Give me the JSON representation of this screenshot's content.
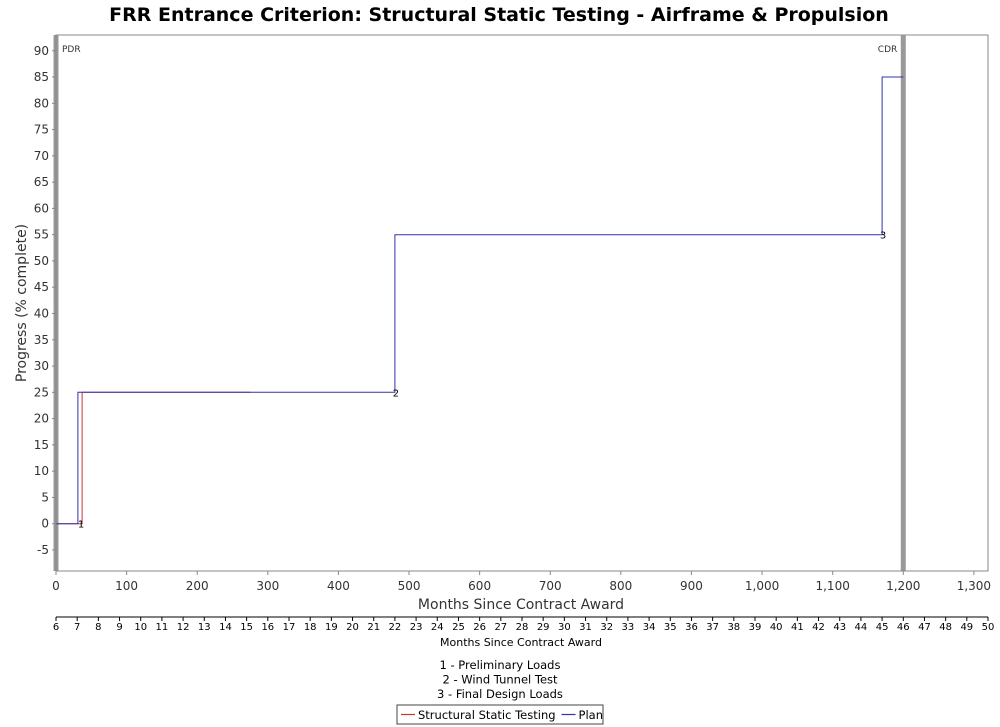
{
  "chart_data": {
    "type": "line",
    "title": "FRR Entrance Criterion: Structural Static Testing - Airframe & Propulsion",
    "xlabel": "Months Since Contract Award",
    "ylabel": "Progress (% complete)",
    "xlim": [
      0,
      1320
    ],
    "ylim": [
      -9,
      93
    ],
    "x_ticks": [
      0,
      100,
      200,
      300,
      400,
      500,
      600,
      700,
      800,
      900,
      1000,
      1100,
      1200,
      1300
    ],
    "x_tick_labels": [
      "0",
      "100",
      "200",
      "300",
      "400",
      "500",
      "600",
      "700",
      "800",
      "900",
      "1,000",
      "1,100",
      "1,200",
      "1,300"
    ],
    "y_ticks": [
      -5,
      0,
      5,
      10,
      15,
      20,
      25,
      30,
      35,
      40,
      45,
      50,
      55,
      60,
      65,
      70,
      75,
      80,
      85,
      90
    ],
    "grid": false,
    "secondary_x_axis": {
      "label": "Months Since Contract Award",
      "labels": [
        "6",
        "7",
        "8",
        "9",
        "10",
        "11",
        "12",
        "13",
        "14",
        "15",
        "16",
        "17",
        "18",
        "19",
        "20",
        "21",
        "22",
        "23",
        "24",
        "25",
        "26",
        "27",
        "28",
        "29",
        "30",
        "31",
        "32",
        "33",
        "34",
        "35",
        "36",
        "37",
        "38",
        "39",
        "40",
        "41",
        "42",
        "43",
        "44",
        "45",
        "46",
        "47",
        "48",
        "49",
        "50"
      ]
    },
    "markers": [
      {
        "label": "PDR",
        "x": 0
      },
      {
        "label": "CDR",
        "x": 1200
      }
    ],
    "series": [
      {
        "name": "Structural Static Testing",
        "color": "#cc3333",
        "x": [
          0,
          37,
          37,
          275
        ],
        "y": [
          0,
          0,
          25,
          25
        ]
      },
      {
        "name": "Plan",
        "color": "#3333aa",
        "x": [
          0,
          31,
          31,
          480,
          480,
          1170,
          1170,
          1200
        ],
        "y": [
          0,
          0,
          25,
          25,
          55,
          55,
          85,
          85
        ]
      }
    ],
    "annotations": [
      {
        "label": "1",
        "x": 34,
        "y": 0
      },
      {
        "label": "2",
        "x": 480,
        "y": 25
      },
      {
        "label": "3",
        "x": 1170,
        "y": 55
      }
    ],
    "notes": [
      "1 - Preliminary Loads",
      "2 - Wind Tunnel Test",
      "3 - Final Design Loads"
    ],
    "legend_position": "bottom-center"
  }
}
